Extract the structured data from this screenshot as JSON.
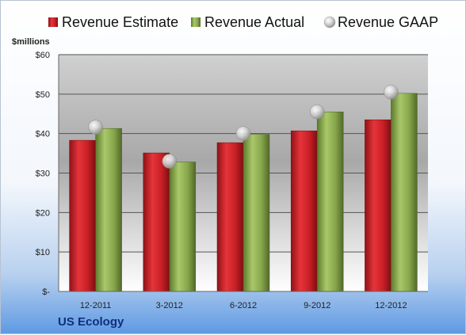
{
  "chart_data": {
    "type": "bar",
    "company": "US Ecology",
    "ylabel": "$millions",
    "categories": [
      "12-2011",
      "3-2012",
      "6-2012",
      "9-2012",
      "12-2012"
    ],
    "series": [
      {
        "name": "Revenue Estimate",
        "type": "bar",
        "color": "#d4252d",
        "values": [
          38.3,
          35.1,
          37.7,
          40.7,
          43.5
        ]
      },
      {
        "name": "Revenue Actual",
        "type": "bar",
        "color": "#8bac4d",
        "values": [
          41.3,
          32.8,
          39.8,
          45.5,
          50.2
        ]
      },
      {
        "name": "Revenue GAAP",
        "type": "scatter",
        "color": "#c8c8c8",
        "values": [
          41.6,
          33.0,
          40.0,
          45.5,
          50.5
        ]
      }
    ],
    "ylim": [
      0,
      60
    ],
    "yticks": [
      0,
      10,
      20,
      30,
      40,
      50,
      60
    ],
    "ytick_labels": [
      "$-",
      "$10",
      "$20",
      "$30",
      "$40",
      "$50",
      "$60"
    ],
    "legend_position": "top",
    "grid": true
  }
}
